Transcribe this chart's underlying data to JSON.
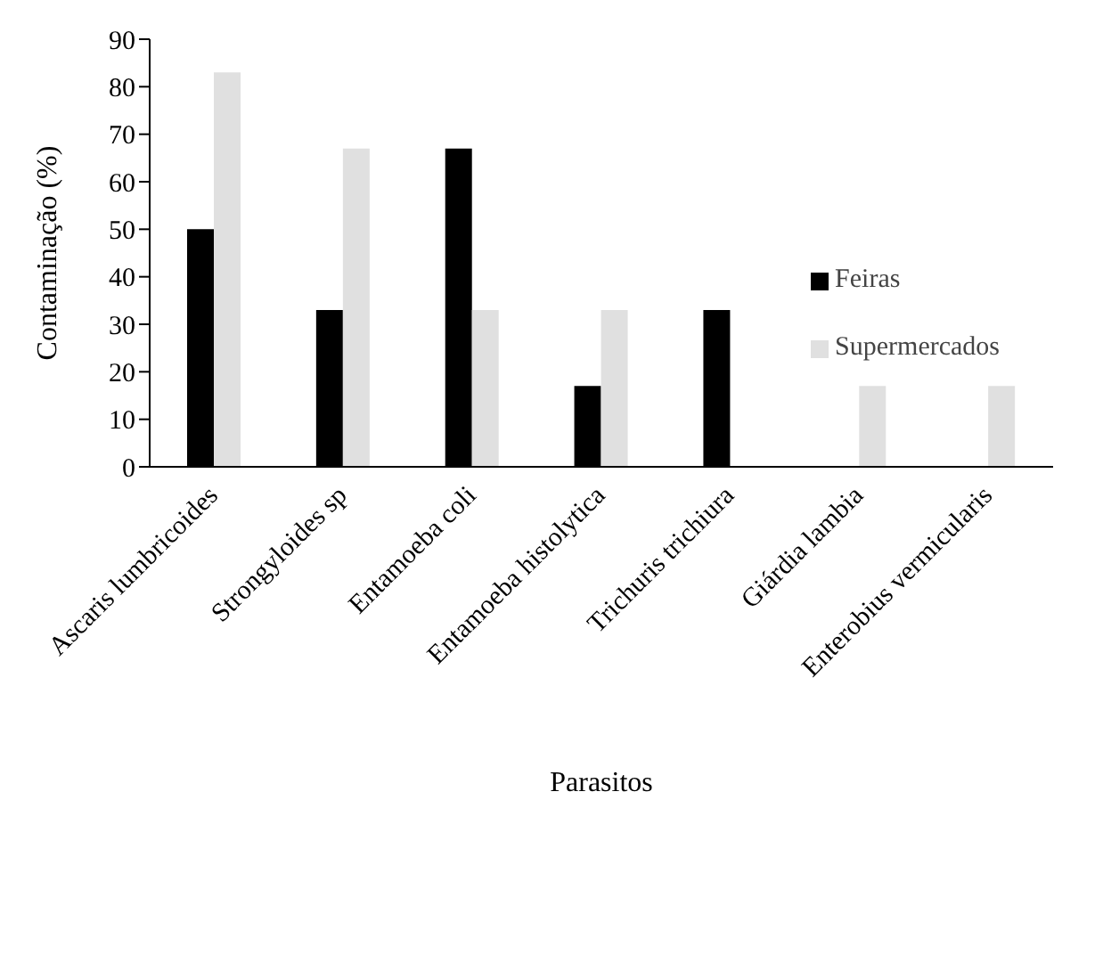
{
  "chart_data": {
    "type": "bar",
    "xlabel": "Parasitos",
    "ylabel": "Contaminação (%)",
    "categories": [
      "Ascaris lumbricoides",
      "Strongyloides sp",
      "Entamoeba coli",
      "Entamoeba histolytica",
      "Trichuris trichiura",
      "Giárdia lambia",
      "Enterobius vermicularis"
    ],
    "series": [
      {
        "name": "Feiras",
        "color": "#000000",
        "values": [
          50,
          33,
          67,
          17,
          33,
          0,
          0
        ]
      },
      {
        "name": "Supermercados",
        "color": "#e0e0e0",
        "values": [
          83,
          67,
          33,
          33,
          0,
          17,
          17
        ]
      }
    ],
    "ylim": [
      0,
      90
    ],
    "yticks": [
      0,
      10,
      20,
      30,
      40,
      50,
      60,
      70,
      80,
      90
    ],
    "grid": false,
    "legend": "right"
  }
}
